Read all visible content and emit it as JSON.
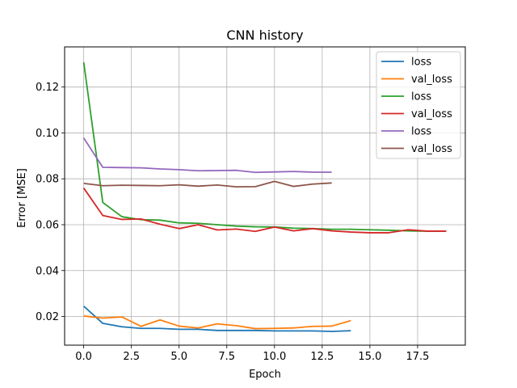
{
  "chart_data": {
    "type": "line",
    "title": "CNN history",
    "xlabel": "Epoch",
    "ylabel": "Error [MSE]",
    "xlim": [
      -1.0,
      20.0
    ],
    "ylim": [
      0.0075,
      0.1375
    ],
    "xticks": [
      0.0,
      2.5,
      5.0,
      7.5,
      10.0,
      12.5,
      15.0,
      17.5
    ],
    "xtick_labels": [
      "0.0",
      "2.5",
      "5.0",
      "7.5",
      "10.0",
      "12.5",
      "15.0",
      "17.5"
    ],
    "yticks": [
      0.02,
      0.04,
      0.06,
      0.08,
      0.1,
      0.12
    ],
    "ytick_labels": [
      "0.02",
      "0.04",
      "0.06",
      "0.08",
      "0.10",
      "0.12"
    ],
    "grid": true,
    "legend_position": "top-right",
    "series": [
      {
        "name": "loss",
        "color": "#1f77b4",
        "x": [
          0,
          1,
          2,
          3,
          4,
          5,
          6,
          7,
          8,
          9,
          10,
          11,
          12,
          13,
          14
        ],
        "values": [
          0.0245,
          0.017,
          0.0155,
          0.0148,
          0.0148,
          0.0144,
          0.0144,
          0.0139,
          0.0139,
          0.0139,
          0.0137,
          0.0137,
          0.0137,
          0.0135,
          0.0138
        ]
      },
      {
        "name": "val_loss",
        "color": "#ff7f0e",
        "x": [
          0,
          1,
          2,
          3,
          4,
          5,
          6,
          7,
          8,
          9,
          10,
          11,
          12,
          13,
          14
        ],
        "values": [
          0.0202,
          0.0193,
          0.0198,
          0.0157,
          0.0185,
          0.0158,
          0.015,
          0.0168,
          0.016,
          0.0147,
          0.0148,
          0.015,
          0.0157,
          0.0158,
          0.0182
        ]
      },
      {
        "name": "loss",
        "color": "#2ca02c",
        "x": [
          0,
          1,
          2,
          3,
          4,
          5,
          6,
          7,
          8,
          9,
          10,
          11,
          12,
          13,
          14,
          15,
          16,
          17,
          18,
          19
        ],
        "values": [
          0.1308,
          0.0697,
          0.0635,
          0.0622,
          0.062,
          0.0608,
          0.0606,
          0.06,
          0.0594,
          0.0591,
          0.059,
          0.0585,
          0.0583,
          0.058,
          0.058,
          0.0578,
          0.0576,
          0.0573,
          0.0572,
          0.0572
        ]
      },
      {
        "name": "val_loss",
        "color": "#d62728",
        "x": [
          0,
          1,
          2,
          3,
          4,
          5,
          6,
          7,
          8,
          9,
          10,
          11,
          12,
          13,
          14,
          15,
          16,
          17,
          18,
          19
        ],
        "values": [
          0.076,
          0.064,
          0.0623,
          0.0625,
          0.0602,
          0.0583,
          0.06,
          0.0577,
          0.0581,
          0.0571,
          0.059,
          0.0573,
          0.0583,
          0.0573,
          0.0568,
          0.0565,
          0.0565,
          0.0578,
          0.0572,
          0.0572
        ]
      },
      {
        "name": "loss",
        "color": "#9467bd",
        "x": [
          0,
          1,
          2,
          3,
          4,
          5,
          6,
          7,
          8,
          9,
          10,
          11,
          12,
          13
        ],
        "values": [
          0.0978,
          0.085,
          0.0849,
          0.0848,
          0.0843,
          0.084,
          0.0835,
          0.0836,
          0.0837,
          0.0828,
          0.083,
          0.0832,
          0.0829,
          0.0829
        ]
      },
      {
        "name": "val_loss",
        "color": "#8c564b",
        "x": [
          0,
          1,
          2,
          3,
          4,
          5,
          6,
          7,
          8,
          9,
          10,
          11,
          12,
          13
        ],
        "values": [
          0.078,
          0.077,
          0.0772,
          0.0771,
          0.077,
          0.0774,
          0.0768,
          0.0773,
          0.0765,
          0.0766,
          0.0789,
          0.0767,
          0.0777,
          0.0782
        ]
      }
    ]
  }
}
